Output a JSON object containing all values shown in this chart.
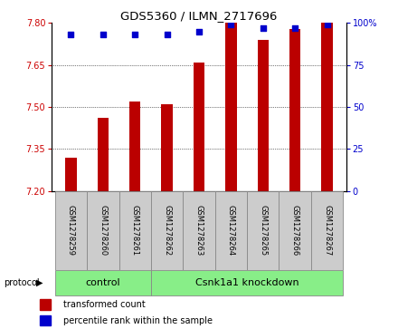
{
  "title": "GDS5360 / ILMN_2717696",
  "samples": [
    "GSM1278259",
    "GSM1278260",
    "GSM1278261",
    "GSM1278262",
    "GSM1278263",
    "GSM1278264",
    "GSM1278265",
    "GSM1278266",
    "GSM1278267"
  ],
  "bar_values": [
    7.32,
    7.46,
    7.52,
    7.51,
    7.66,
    7.8,
    7.74,
    7.78,
    7.8
  ],
  "percentile_values": [
    93,
    93,
    93,
    93,
    95,
    99,
    97,
    97,
    99
  ],
  "ymin": 7.2,
  "ymax": 7.8,
  "yticks": [
    7.2,
    7.35,
    7.5,
    7.65,
    7.8
  ],
  "y2min": 0,
  "y2max": 100,
  "y2ticks": [
    0,
    25,
    50,
    75,
    100
  ],
  "bar_color": "#bb0000",
  "dot_color": "#0000cc",
  "bar_width": 0.35,
  "n_control": 3,
  "n_knockdown": 6,
  "control_label": "control",
  "knockdown_label": "Csnk1a1 knockdown",
  "protocol_label": "protocol",
  "legend_bar_label": "transformed count",
  "legend_dot_label": "percentile rank within the sample",
  "axis_color_left": "#cc0000",
  "axis_color_right": "#0000cc",
  "sample_box_color": "#cccccc",
  "group_box_color": "#88ee88",
  "tick_fontsize": 7,
  "sample_fontsize": 6,
  "group_fontsize": 8,
  "legend_fontsize": 7
}
